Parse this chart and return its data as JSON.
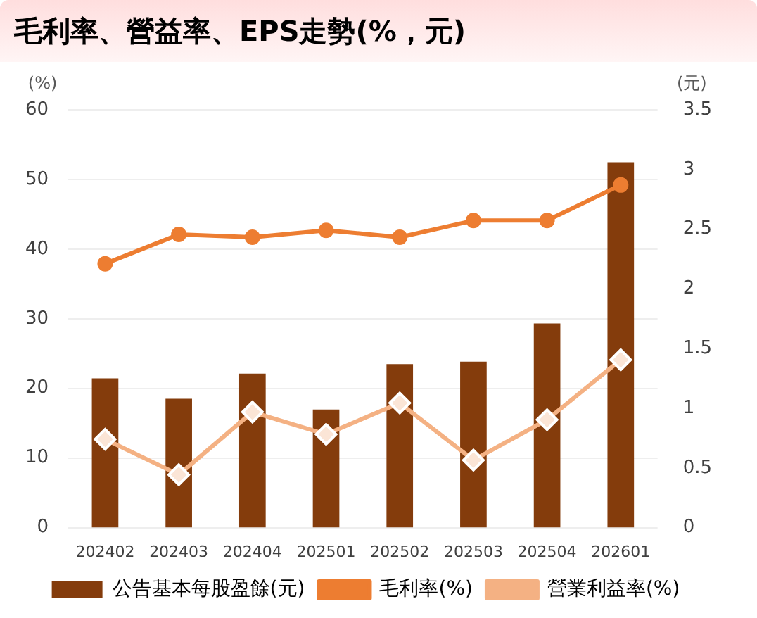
{
  "chart_data": {
    "type": "bar",
    "title": "毛利率、營益率、EPS走勢(%，元)",
    "ylabel": "(%)",
    "y2label": "(元)",
    "categories": [
      "202402",
      "202403",
      "202404",
      "202501",
      "202502",
      "202503",
      "202504",
      "202601"
    ],
    "series": [
      {
        "name": "公告基本每股盈餘(元)",
        "axis": "y2",
        "color": "#843c0c",
        "values": [
          1.25,
          1.08,
          1.29,
          0.99,
          1.37,
          1.39,
          1.71,
          3.06
        ]
      },
      {
        "name": "毛利率(%)",
        "type": "line",
        "marker": "circle",
        "color": "#ed7d31",
        "values": [
          37.9,
          42.1,
          41.7,
          42.7,
          41.7,
          44.1,
          44.1,
          49.2
        ]
      },
      {
        "name": "營業利益率(%)",
        "type": "line",
        "marker": "diamond",
        "color": "#f4b183",
        "values": [
          12.7,
          7.6,
          16.6,
          13.4,
          17.9,
          9.7,
          15.5,
          24.1
        ]
      }
    ],
    "ylim": [
      0,
      60
    ],
    "yticks": [
      0,
      10,
      20,
      30,
      40,
      50,
      60
    ],
    "y2lim": [
      0,
      3.5
    ],
    "y2ticks": [
      0,
      0.5,
      1,
      1.5,
      2,
      2.5,
      3,
      3.5
    ],
    "grid": "y",
    "legend": "bottom"
  }
}
